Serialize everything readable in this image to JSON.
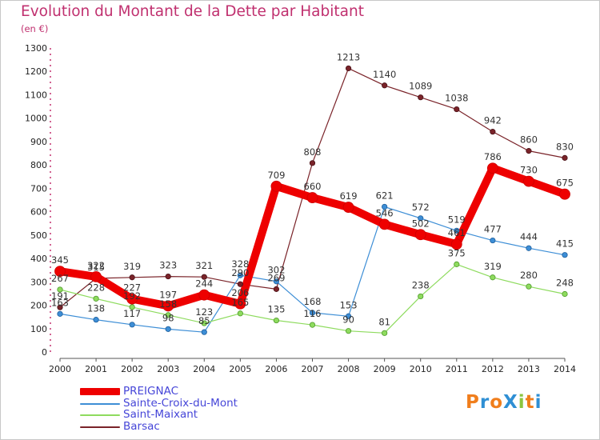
{
  "header": {
    "title": "Evolution du Montant de la Dette par Habitant",
    "subtitle": "(en €)"
  },
  "logo": {
    "text": "ProXiti"
  },
  "chart_data": {
    "type": "line",
    "title": "Evolution du Montant de la Dette par Habitant",
    "subtitle": "(en €)",
    "xlabel": "",
    "ylabel": "",
    "x": [
      "2000",
      "2001",
      "2002",
      "2003",
      "2004",
      "2005",
      "2006",
      "2007",
      "2008",
      "2009",
      "2010",
      "2011",
      "2012",
      "2013",
      "2014"
    ],
    "ylim": [
      0,
      1300
    ],
    "yticks": [
      0,
      100,
      200,
      300,
      400,
      500,
      600,
      700,
      800,
      900,
      1000,
      1100,
      1200,
      1300
    ],
    "grid": false,
    "legend": "bottom-left",
    "series": [
      {
        "name": "PREIGNAC",
        "color": "#ee0000",
        "values": [
          345,
          322,
          227,
          197,
          244,
          206,
          709,
          660,
          619,
          546,
          502,
          461,
          786,
          730,
          675
        ]
      },
      {
        "name": "Sainte-Croix-du-Mont",
        "color": "#3d8ed6",
        "values": [
          163,
          138,
          117,
          98,
          85,
          328,
          302,
          168,
          153,
          621,
          572,
          519,
          477,
          444,
          415
        ]
      },
      {
        "name": "Saint-Maixant",
        "color": "#8edb5e",
        "values": [
          267,
          228,
          192,
          158,
          123,
          165,
          135,
          116,
          90,
          81,
          238,
          375,
          319,
          280,
          248
        ]
      },
      {
        "name": "Barsac",
        "color": "#7a2329",
        "values": [
          191,
          315,
          319,
          323,
          321,
          290,
          269,
          808,
          1213,
          1140,
          1089,
          1038,
          942,
          860,
          830
        ]
      }
    ]
  }
}
